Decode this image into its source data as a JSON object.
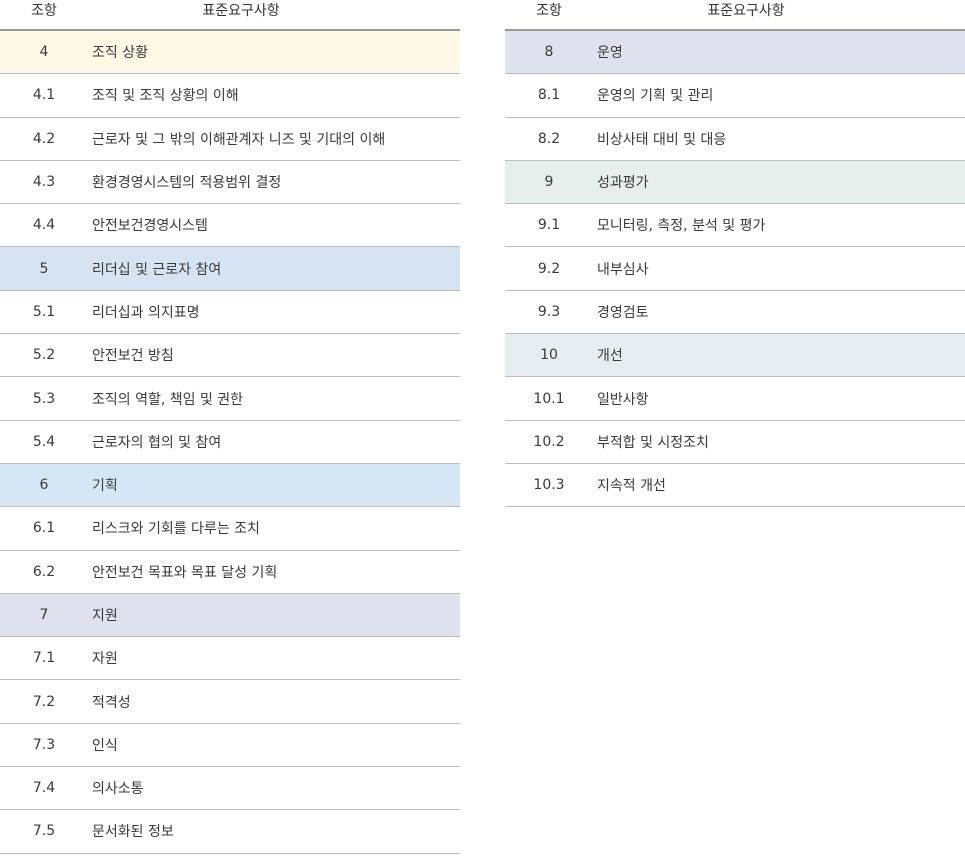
{
  "headers": {
    "clause": "조항",
    "requirement": "표준요구사항"
  },
  "left": [
    {
      "num": "4",
      "text": "조직 상황",
      "bg": "#fef9e6"
    },
    {
      "num": "4.1",
      "text": "조직 및 조직 상황의 이해"
    },
    {
      "num": "4.2",
      "text": "근로자 및 그 밖의 이해관계자 니즈 및 기대의 이해"
    },
    {
      "num": "4.3",
      "text": "환경경영시스템의 적용범위 결정"
    },
    {
      "num": "4.4",
      "text": "안전보건경영시스템"
    },
    {
      "num": "5",
      "text": "리더십 및 근로자 참여",
      "bg": "#d6e3f0"
    },
    {
      "num": "5.1",
      "text": "리더십과 의지표명"
    },
    {
      "num": "5.2",
      "text": "안전보건 방침"
    },
    {
      "num": "5.3",
      "text": "조직의 역할, 책임 및 권한"
    },
    {
      "num": "5.4",
      "text": "근로자의 협의 및 참여"
    },
    {
      "num": "6",
      "text": "기획",
      "bg": "#d5e7f5"
    },
    {
      "num": "6.1",
      "text": "리스크와 기회를 다루는 조치"
    },
    {
      "num": "6.2",
      "text": "안전보건 목표와 목표 달성 기획"
    },
    {
      "num": "7",
      "text": "지원",
      "bg": "#dfe1ee"
    },
    {
      "num": "7.1",
      "text": "자원"
    },
    {
      "num": "7.2",
      "text": "적격성"
    },
    {
      "num": "7.3",
      "text": "인식"
    },
    {
      "num": "7.4",
      "text": "의사소통"
    },
    {
      "num": "7.5",
      "text": "문서화된 정보"
    }
  ],
  "right": [
    {
      "num": "8",
      "text": "운영",
      "bg": "#dfe1ee"
    },
    {
      "num": "8.1",
      "text": "운영의 기획 및 관리"
    },
    {
      "num": "8.2",
      "text": "비상사태 대비 및 대응"
    },
    {
      "num": "9",
      "text": "성과평가",
      "bg": "#e6efec"
    },
    {
      "num": "9.1",
      "text": "모니터링, 측정, 분석 및 평가"
    },
    {
      "num": "9.2",
      "text": "내부심사"
    },
    {
      "num": "9.3",
      "text": "경영검토"
    },
    {
      "num": "10",
      "text": "개선",
      "bg": "#e6ecef"
    },
    {
      "num": "10.1",
      "text": "일반사항"
    },
    {
      "num": "10.2",
      "text": "부적합 및 시정조치"
    },
    {
      "num": "10.3",
      "text": "지속적 개선"
    }
  ]
}
